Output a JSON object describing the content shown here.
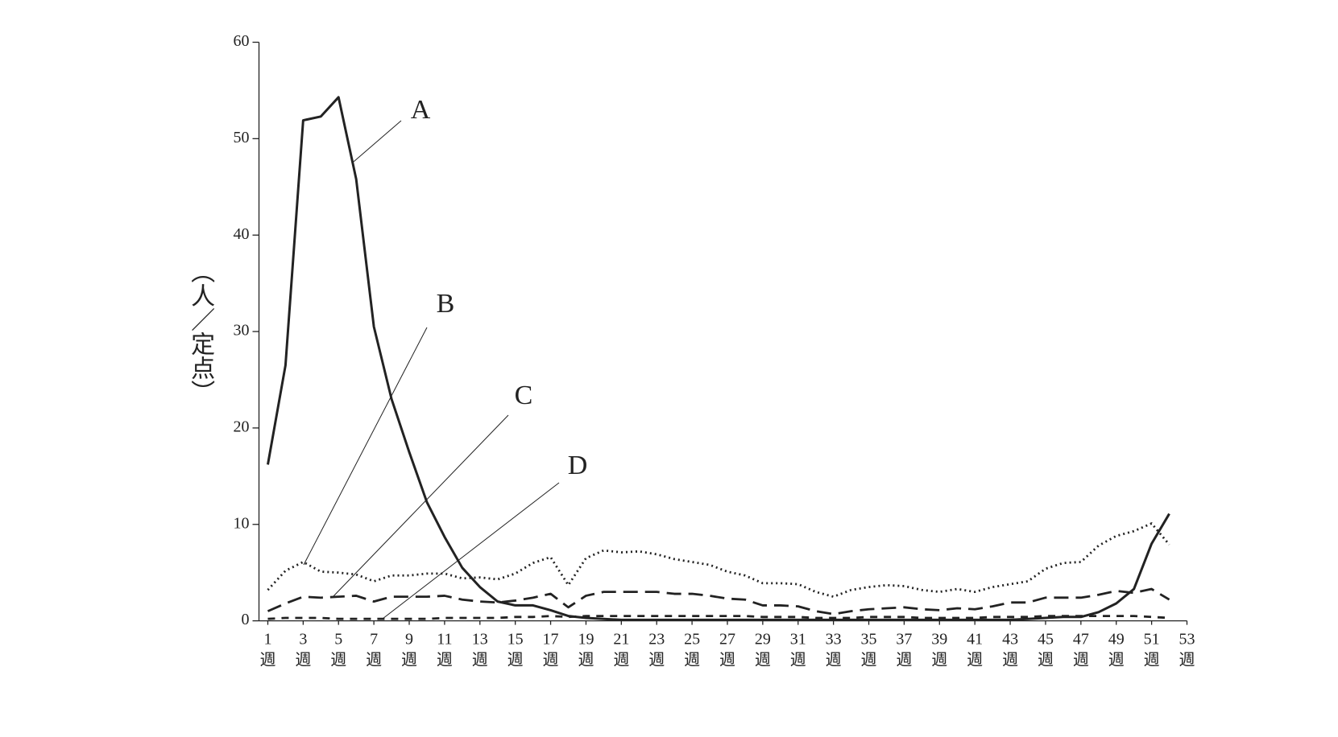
{
  "chart_data": {
    "type": "line",
    "y_label": "（人／定点）",
    "x": [
      1,
      2,
      3,
      4,
      5,
      6,
      7,
      8,
      9,
      10,
      11,
      12,
      13,
      14,
      15,
      16,
      17,
      18,
      19,
      20,
      21,
      22,
      23,
      24,
      25,
      26,
      27,
      28,
      29,
      30,
      31,
      32,
      33,
      34,
      35,
      36,
      37,
      38,
      39,
      40,
      41,
      42,
      43,
      44,
      45,
      46,
      47,
      48,
      49,
      50,
      51,
      52
    ],
    "series": [
      {
        "name": "A",
        "color": "#222222",
        "dash": "solid",
        "values": [
          16.2,
          26.5,
          51.9,
          52.3,
          54.3,
          45.8,
          30.5,
          23,
          17.5,
          12.3,
          8.7,
          5.5,
          3.5,
          2.0,
          1.6,
          1.6,
          1.1,
          0.5,
          0.3,
          0.2,
          0.1,
          0.1,
          0.1,
          0.1,
          0.1,
          0.1,
          0.1,
          0.1,
          0.1,
          0.1,
          0.1,
          0.1,
          0.1,
          0.1,
          0.1,
          0.1,
          0.1,
          0.1,
          0.1,
          0.1,
          0.1,
          0.1,
          0.1,
          0.2,
          0.3,
          0.4,
          0.4,
          0.9,
          1.8,
          3.3,
          8.0,
          11.1
        ]
      },
      {
        "name": "B",
        "color": "#222222",
        "dash": "dotted",
        "values": [
          3.2,
          5.2,
          6.1,
          5.1,
          5.0,
          4.8,
          4.1,
          4.7,
          4.7,
          4.9,
          4.9,
          4.4,
          4.5,
          4.3,
          4.9,
          6.0,
          6.6,
          3.7,
          6.5,
          7.3,
          7.1,
          7.2,
          6.9,
          6.4,
          6.1,
          5.8,
          5.1,
          4.7,
          3.9,
          3.9,
          3.8,
          3.0,
          2.5,
          3.2,
          3.5,
          3.7,
          3.6,
          3.2,
          3.0,
          3.3,
          3.0,
          3.5,
          3.8,
          4.1,
          5.4,
          6.0,
          6.1,
          7.8,
          8.8,
          9.3,
          10.1,
          7.9
        ]
      },
      {
        "name": "C",
        "color": "#222222",
        "dash": "dashed",
        "values": [
          1.0,
          1.8,
          2.5,
          2.4,
          2.5,
          2.6,
          2.0,
          2.5,
          2.5,
          2.5,
          2.6,
          2.2,
          2.0,
          1.9,
          2.1,
          2.4,
          2.8,
          1.4,
          2.6,
          3.0,
          3.0,
          3.0,
          3.0,
          2.8,
          2.8,
          2.6,
          2.3,
          2.2,
          1.6,
          1.6,
          1.5,
          1.0,
          0.7,
          1.0,
          1.2,
          1.3,
          1.4,
          1.2,
          1.1,
          1.3,
          1.2,
          1.5,
          1.9,
          1.9,
          2.4,
          2.4,
          2.4,
          2.7,
          3.1,
          2.9,
          3.3,
          2.2
        ]
      },
      {
        "name": "D",
        "color": "#222222",
        "dash": "short-dashed",
        "values": [
          0.2,
          0.3,
          0.3,
          0.3,
          0.2,
          0.2,
          0.2,
          0.2,
          0.2,
          0.2,
          0.3,
          0.3,
          0.3,
          0.3,
          0.4,
          0.4,
          0.5,
          0.4,
          0.5,
          0.5,
          0.5,
          0.5,
          0.5,
          0.5,
          0.5,
          0.5,
          0.5,
          0.5,
          0.4,
          0.4,
          0.4,
          0.3,
          0.3,
          0.3,
          0.4,
          0.4,
          0.4,
          0.3,
          0.3,
          0.3,
          0.3,
          0.4,
          0.4,
          0.4,
          0.5,
          0.5,
          0.5,
          0.5,
          0.5,
          0.5,
          0.4,
          0.3
        ]
      }
    ],
    "xlim": [
      0.5,
      53
    ],
    "ylim": [
      0,
      60
    ],
    "yticks": [
      0,
      10,
      20,
      30,
      40,
      50,
      60
    ],
    "xticks": [
      {
        "value": 1,
        "label": "1週"
      },
      {
        "value": 3,
        "label": "3週"
      },
      {
        "value": 5,
        "label": "5週"
      },
      {
        "value": 7,
        "label": "7週"
      },
      {
        "value": 9,
        "label": "9週"
      },
      {
        "value": 11,
        "label": "11週"
      },
      {
        "value": 13,
        "label": "13週"
      },
      {
        "value": 15,
        "label": "15週"
      },
      {
        "value": 17,
        "label": "17週"
      },
      {
        "value": 19,
        "label": "19週"
      },
      {
        "value": 21,
        "label": "21週"
      },
      {
        "value": 23,
        "label": "23週"
      },
      {
        "value": 25,
        "label": "25週"
      },
      {
        "value": 27,
        "label": "27週"
      },
      {
        "value": 29,
        "label": "29週"
      },
      {
        "value": 31,
        "label": "31週"
      },
      {
        "value": 33,
        "label": "33週"
      },
      {
        "value": 35,
        "label": "35週"
      },
      {
        "value": 37,
        "label": "37週"
      },
      {
        "value": 39,
        "label": "39週"
      },
      {
        "value": 41,
        "label": "41週"
      },
      {
        "value": 43,
        "label": "43週"
      },
      {
        "value": 45,
        "label": "45週"
      },
      {
        "value": 47,
        "label": "47週"
      },
      {
        "value": 49,
        "label": "49週"
      },
      {
        "value": 51,
        "label": "51週"
      },
      {
        "value": 53,
        "label": "53週"
      }
    ]
  }
}
